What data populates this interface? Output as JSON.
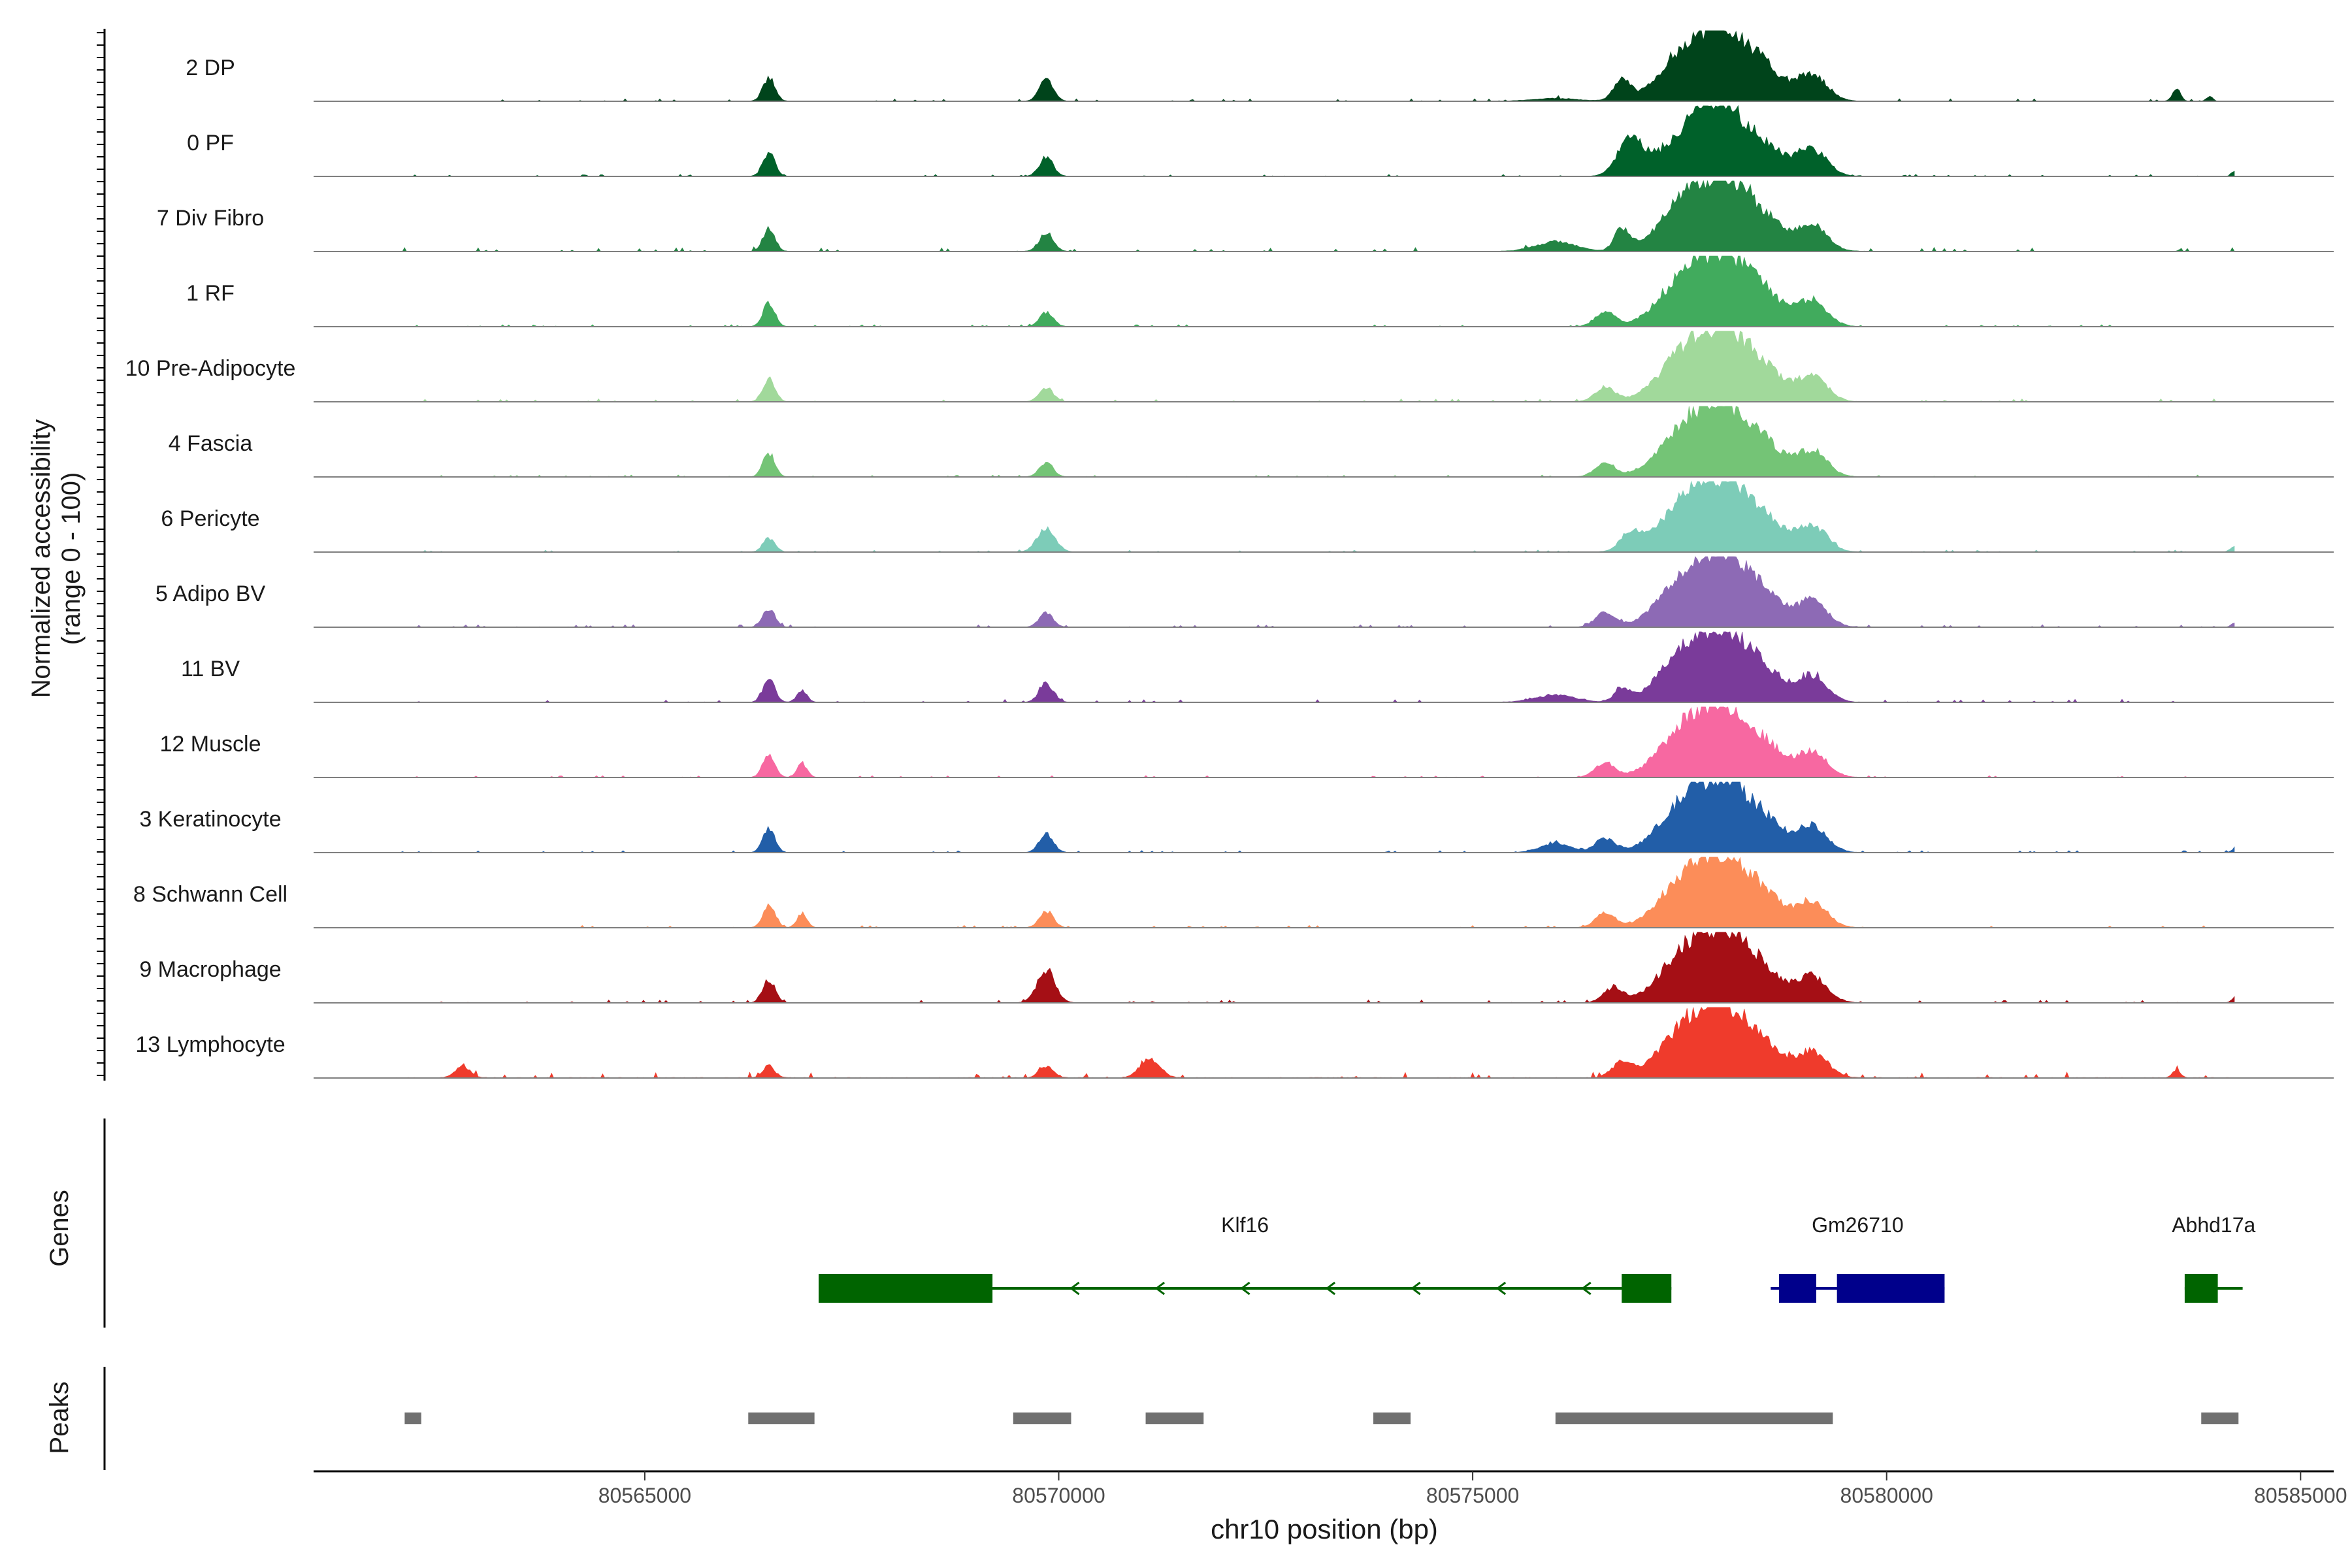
{
  "chart_data": {
    "type": "area",
    "title": "",
    "xlabel": "chr10 position (bp)",
    "ylabel": "Normalized accessibility\n(range 0 - 100)",
    "ylabel_lines": [
      "Normalized accessibility",
      "(range 0 - 100)"
    ],
    "xlim": [
      80561000,
      80585400
    ],
    "ylim": [
      0,
      100
    ],
    "xticks": [
      80565000,
      80570000,
      80575000,
      80580000,
      80585000
    ],
    "xtick_labels": [
      "80565000",
      "80570000",
      "80575000",
      "80580000",
      "80585000"
    ],
    "signal_extent": [
      80562000,
      80584200
    ],
    "series": [
      {
        "name": "2 DP",
        "color": "#00441b",
        "noise": 2.5,
        "scale": 0.72,
        "peaks": [
          [
            80566500,
            100,
            12
          ],
          [
            80569850,
            90,
            14
          ],
          [
            80576000,
            12,
            45
          ],
          [
            80576800,
            90,
            16
          ],
          [
            80577500,
            130,
            50
          ],
          [
            80577900,
            190,
            55
          ],
          [
            80578200,
            140,
            45
          ],
          [
            80578600,
            80,
            35
          ],
          [
            80579100,
            110,
            30
          ],
          [
            80583900,
            20,
            6
          ],
          [
            80583500,
            55,
            8
          ]
        ]
      },
      {
        "name": "0 PF",
        "color": "#00612a",
        "noise": 2.0,
        "scale": 0.72,
        "peaks": [
          [
            80566500,
            100,
            12
          ],
          [
            80569850,
            80,
            14
          ],
          [
            80576900,
            150,
            25
          ],
          [
            80577500,
            130,
            50
          ],
          [
            80577900,
            190,
            45
          ],
          [
            80578200,
            140,
            45
          ],
          [
            80578600,
            80,
            35
          ],
          [
            80579100,
            110,
            30
          ],
          [
            80584200,
            20,
            6
          ]
        ]
      },
      {
        "name": "7 Div Fibro",
        "color": "#238443",
        "noise": 4.0,
        "scale": 0.72,
        "peaks": [
          [
            80566500,
            100,
            12
          ],
          [
            80569850,
            80,
            14
          ],
          [
            80576000,
            40,
            40
          ],
          [
            80576800,
            90,
            15
          ],
          [
            80577500,
            130,
            50
          ],
          [
            80577900,
            190,
            55
          ],
          [
            80578200,
            140,
            45
          ],
          [
            80578600,
            80,
            35
          ],
          [
            80579100,
            110,
            30
          ]
        ]
      },
      {
        "name": "1 RF",
        "color": "#41ab5d",
        "noise": 2.0,
        "scale": 0.72,
        "peaks": [
          [
            80566500,
            100,
            12
          ],
          [
            80569850,
            60,
            14
          ],
          [
            80576600,
            60,
            20
          ],
          [
            80577500,
            130,
            50
          ],
          [
            80577900,
            190,
            55
          ],
          [
            80578200,
            140,
            45
          ],
          [
            80578600,
            80,
            35
          ],
          [
            80579100,
            110,
            30
          ]
        ]
      },
      {
        "name": "10 Pre-Adipocyte",
        "color": "#a1d99b",
        "noise": 3.0,
        "scale": 0.72,
        "peaks": [
          [
            80566500,
            100,
            12
          ],
          [
            80569850,
            60,
            14
          ],
          [
            80576600,
            60,
            20
          ],
          [
            80577500,
            130,
            50
          ],
          [
            80577900,
            190,
            55
          ],
          [
            80578200,
            140,
            45
          ],
          [
            80578600,
            80,
            35
          ],
          [
            80579100,
            110,
            30
          ]
        ]
      },
      {
        "name": "4 Fascia",
        "color": "#74c476",
        "noise": 2.0,
        "scale": 0.72,
        "peaks": [
          [
            80566500,
            100,
            12
          ],
          [
            80569850,
            60,
            14
          ],
          [
            80576600,
            60,
            20
          ],
          [
            80577500,
            130,
            50
          ],
          [
            80577900,
            190,
            55
          ],
          [
            80578200,
            140,
            45
          ],
          [
            80578600,
            80,
            35
          ],
          [
            80579100,
            110,
            30
          ]
        ]
      },
      {
        "name": "6 Pericyte",
        "color": "#7dccb8",
        "noise": 2.0,
        "scale": 0.72,
        "peaks": [
          [
            80566500,
            60,
            12
          ],
          [
            80569850,
            100,
            18
          ],
          [
            80576900,
            70,
            20
          ],
          [
            80577500,
            130,
            50
          ],
          [
            80577900,
            190,
            55
          ],
          [
            80578200,
            140,
            45
          ],
          [
            80578600,
            80,
            35
          ],
          [
            80579100,
            110,
            30
          ],
          [
            80584200,
            25,
            8
          ]
        ]
      },
      {
        "name": "5 Adipo BV",
        "color": "#8d6ab5",
        "noise": 2.5,
        "scale": 0.72,
        "peaks": [
          [
            80566500,
            80,
            12
          ],
          [
            80569850,
            60,
            14
          ],
          [
            80576600,
            60,
            20
          ],
          [
            80577500,
            130,
            50
          ],
          [
            80577900,
            190,
            55
          ],
          [
            80578200,
            140,
            45
          ],
          [
            80578600,
            80,
            35
          ],
          [
            80579100,
            110,
            30
          ],
          [
            80584200,
            20,
            6
          ]
        ]
      },
      {
        "name": "11 BV",
        "color": "#7a3b9a",
        "noise": 3.0,
        "scale": 0.72,
        "peaks": [
          [
            80566500,
            100,
            12
          ],
          [
            80566900,
            50,
            10
          ],
          [
            80569850,
            80,
            14
          ],
          [
            80576000,
            30,
            40
          ],
          [
            80576800,
            50,
            15
          ],
          [
            80577500,
            130,
            50
          ],
          [
            80577900,
            190,
            55
          ],
          [
            80578200,
            140,
            45
          ],
          [
            80578600,
            80,
            35
          ],
          [
            80579100,
            110,
            30
          ]
        ]
      },
      {
        "name": "12 Muscle",
        "color": "#f768a1",
        "noise": 2.0,
        "scale": 0.72,
        "peaks": [
          [
            80566500,
            100,
            12
          ],
          [
            80566900,
            60,
            10
          ],
          [
            80576600,
            60,
            20
          ],
          [
            80577500,
            130,
            50
          ],
          [
            80577900,
            190,
            55
          ],
          [
            80578200,
            140,
            45
          ],
          [
            80578600,
            80,
            35
          ],
          [
            80579100,
            110,
            30
          ]
        ]
      },
      {
        "name": "3 Keratinocyte",
        "color": "#225ea8",
        "noise": 2.0,
        "scale": 0.72,
        "peaks": [
          [
            80566500,
            100,
            12
          ],
          [
            80569850,
            80,
            14
          ],
          [
            80576000,
            40,
            30
          ],
          [
            80576600,
            60,
            20
          ],
          [
            80577500,
            130,
            50
          ],
          [
            80577900,
            190,
            55
          ],
          [
            80578200,
            140,
            45
          ],
          [
            80578600,
            80,
            35
          ],
          [
            80579100,
            110,
            30
          ],
          [
            80584200,
            15,
            6
          ]
        ]
      },
      {
        "name": "8 Schwann Cell",
        "color": "#fc8d59",
        "noise": 2.5,
        "scale": 0.72,
        "peaks": [
          [
            80566500,
            100,
            12
          ],
          [
            80566900,
            60,
            10
          ],
          [
            80569850,
            70,
            14
          ],
          [
            80576600,
            60,
            20
          ],
          [
            80577500,
            130,
            50
          ],
          [
            80577900,
            190,
            55
          ],
          [
            80578200,
            140,
            45
          ],
          [
            80578600,
            80,
            35
          ],
          [
            80579100,
            110,
            30
          ]
        ]
      },
      {
        "name": "9 Macrophage",
        "color": "#a50f15",
        "noise": 3.0,
        "scale": 0.72,
        "peaks": [
          [
            80566500,
            100,
            12
          ],
          [
            80569850,
            140,
            18
          ],
          [
            80576700,
            60,
            20
          ],
          [
            80577500,
            130,
            50
          ],
          [
            80577900,
            190,
            55
          ],
          [
            80578200,
            140,
            45
          ],
          [
            80578600,
            80,
            35
          ],
          [
            80579100,
            110,
            30
          ],
          [
            80584200,
            20,
            6
          ]
        ]
      },
      {
        "name": "13 Lymphocyte",
        "color": "#ef3b2c",
        "noise": 6.0,
        "scale": 0.72,
        "peaks": [
          [
            80562800,
            50,
            15
          ],
          [
            80566500,
            50,
            12
          ],
          [
            80569850,
            50,
            14
          ],
          [
            80571100,
            80,
            20
          ],
          [
            80576800,
            60,
            20
          ],
          [
            80577500,
            130,
            50
          ],
          [
            80577900,
            190,
            55
          ],
          [
            80578200,
            140,
            45
          ],
          [
            80578600,
            80,
            35
          ],
          [
            80579100,
            110,
            30
          ],
          [
            80583500,
            30,
            8
          ]
        ]
      }
    ],
    "genes_track": {
      "label": "Genes",
      "genes": [
        {
          "name": "Klf16",
          "color": "#006400",
          "strand": "-",
          "start": 80567100,
          "end": 80577400,
          "exons": [
            [
              80567100,
              80569200
            ],
            [
              80576800,
              80577400
            ]
          ]
        },
        {
          "name": "Gm26710",
          "color": "#00008b",
          "strand": "+",
          "start": 80578600,
          "end": 80580700,
          "exons": [
            [
              80578700,
              80579150
            ],
            [
              80579400,
              80580700
            ]
          ]
        },
        {
          "name": "Abhd17a",
          "color": "#006400",
          "strand": "-",
          "start": 80583600,
          "end": 80584300,
          "exons": [
            [
              80583600,
              80584000
            ]
          ]
        }
      ]
    },
    "peaks_track": {
      "label": "Peaks",
      "color": "#707070",
      "regions": [
        [
          80562100,
          80562300
        ],
        [
          80566250,
          80567050
        ],
        [
          80569450,
          80570150
        ],
        [
          80571050,
          80571750
        ],
        [
          80573800,
          80574250
        ],
        [
          80576000,
          80579350
        ],
        [
          80583800,
          80584250
        ]
      ]
    }
  }
}
